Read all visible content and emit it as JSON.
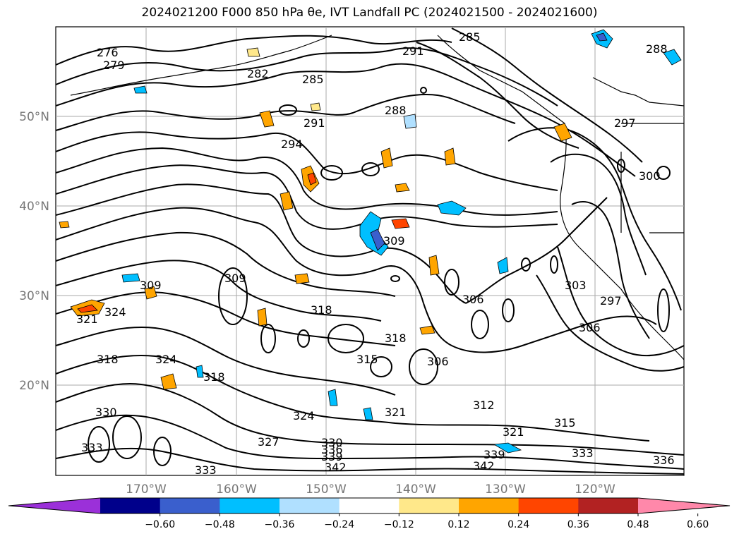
{
  "title": "2024021200 F000 850 hPa θe, IVT Landfall PC (2024021500 - 2024021600)",
  "lon_ticks": [
    "170°W",
    "160°W",
    "150°W",
    "140°W",
    "130°W",
    "120°W"
  ],
  "lat_ticks": [
    "50°N",
    "40°N",
    "30°N",
    "20°N"
  ],
  "colorbar": {
    "ticks": [
      "−0.60",
      "−0.48",
      "−0.36",
      "−0.24",
      "−0.12",
      "0.12",
      "0.24",
      "0.36",
      "0.48",
      "0.60"
    ],
    "colors": [
      "#9b30d9",
      "#00008b",
      "#3a5fcd",
      "#00bfff",
      "#b0e0ff",
      "#ffffff",
      "#ffe88a",
      "#ffa500",
      "#ff4500",
      "#b22222",
      "#ff88aa"
    ]
  },
  "contour_labels": [
    "276",
    "279",
    "282",
    "285",
    "285",
    "288",
    "288",
    "291",
    "291",
    "294",
    "297",
    "297",
    "300",
    "303",
    "306",
    "306",
    "306",
    "309",
    "309",
    "309",
    "312",
    "315",
    "315",
    "318",
    "318",
    "318",
    "318",
    "321",
    "321",
    "321",
    "324",
    "324",
    "324",
    "327",
    "330",
    "330",
    "333",
    "333",
    "333",
    "336",
    "336",
    "339",
    "339",
    "342",
    "342"
  ]
}
